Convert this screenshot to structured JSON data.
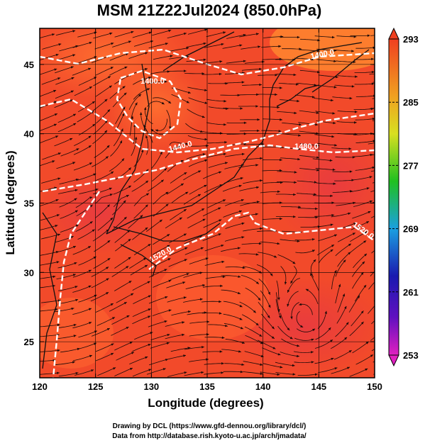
{
  "chart_data": {
    "type": "heatmap",
    "title": "MSM 21Z22Jul2024 (850.0hPa)",
    "xlabel": "Longitude (degrees)",
    "ylabel": "Latitude  (degrees)",
    "xlim": [
      120,
      150
    ],
    "ylim": [
      22.4,
      47.6
    ],
    "x_ticks": [
      "120",
      "125",
      "130",
      "135",
      "140",
      "145",
      "150"
    ],
    "y_ticks": [
      "25",
      "30",
      "35",
      "40",
      "45"
    ],
    "colorbar": {
      "range": [
        253,
        293
      ],
      "tick_labels": [
        "293",
        "285",
        "277",
        "269",
        "261",
        "253"
      ],
      "colors": [
        "#e020c0",
        "#1a1ab0",
        "#1aa0e0",
        "#20c020",
        "#d8e020",
        "#f0a020",
        "#f04020"
      ]
    },
    "contours": [
      {
        "label": "1400.0"
      },
      {
        "label": "1440.0"
      },
      {
        "label": "1480.0"
      },
      {
        "label": "1520.0"
      },
      {
        "label": "1520.0"
      },
      {
        "label": "1400.0"
      }
    ],
    "credits": [
      "Drawing by DCL (https://www.gfd-dennou.org/library/dcl/)",
      "Data from http://database.rish.kyoto-u.ac.jp/arch/jmadata/"
    ]
  }
}
